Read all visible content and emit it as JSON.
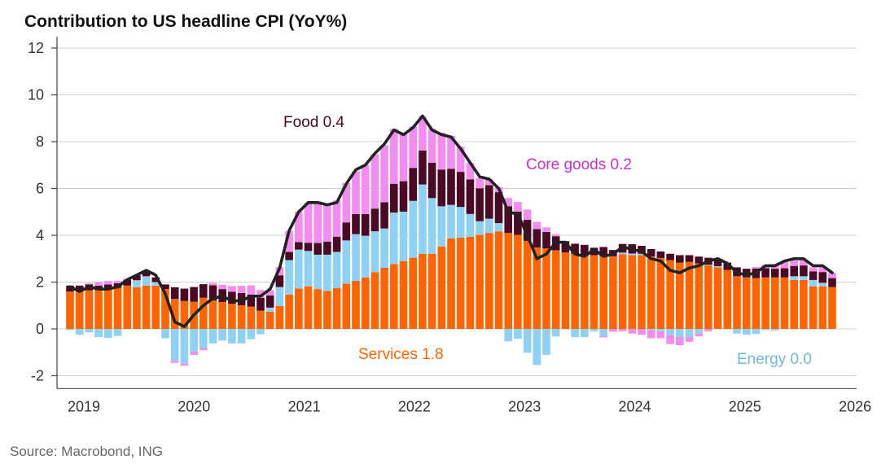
{
  "chart_data": {
    "type": "bar",
    "stacked": true,
    "title": "Contribution to US headline CPI (YoY%)",
    "xlabel": "",
    "ylabel": "",
    "ylim": [
      -2.55,
      12
    ],
    "y_ticks": [
      -2,
      0,
      2,
      4,
      6,
      8,
      10,
      12
    ],
    "x_ticks": [
      "2019",
      "2020",
      "2021",
      "2022",
      "2023",
      "2024",
      "2025",
      "2026"
    ],
    "grid": true,
    "frequency": "monthly",
    "colors": {
      "services": "#ff6400",
      "energy": "#8fd0f5",
      "food": "#4a0a25",
      "core_goods": "#f28cf0",
      "headline": "#222222"
    },
    "series": [
      {
        "name": "Services",
        "key": "services",
        "values": [
          1.6,
          1.6,
          1.65,
          1.65,
          1.7,
          1.75,
          1.85,
          1.78,
          1.85,
          1.85,
          1.7,
          1.28,
          1.19,
          1.16,
          1.33,
          1.21,
          1.15,
          1.07,
          1.01,
          0.95,
          0.78,
          0.74,
          0.98,
          1.47,
          1.73,
          1.82,
          1.7,
          1.62,
          1.74,
          1.94,
          2.05,
          2.2,
          2.43,
          2.61,
          2.77,
          2.9,
          3.04,
          3.21,
          3.21,
          3.52,
          3.87,
          3.9,
          3.94,
          4.02,
          4.1,
          4.17,
          4.1,
          4.02,
          3.76,
          3.48,
          3.44,
          3.36,
          3.27,
          3.21,
          3.15,
          3.15,
          3.1,
          3.1,
          3.19,
          3.15,
          3.15,
          3.1,
          3.03,
          2.94,
          2.83,
          2.86,
          2.8,
          2.71,
          2.63,
          2.52,
          2.25,
          2.2,
          2.17,
          2.2,
          2.2,
          2.2,
          2.09,
          2.09,
          1.82,
          1.82,
          1.79
        ]
      },
      {
        "name": "Energy",
        "key": "energy",
        "values": [
          -0.05,
          -0.25,
          -0.15,
          -0.35,
          -0.38,
          -0.3,
          0.0,
          0.3,
          0.4,
          0.15,
          -0.4,
          -1.37,
          -1.47,
          -0.96,
          -0.81,
          -0.62,
          -0.5,
          -0.62,
          -0.62,
          -0.44,
          -0.23,
          0.17,
          0.81,
          1.47,
          1.66,
          1.51,
          1.47,
          1.55,
          1.55,
          1.84,
          2.0,
          1.78,
          1.74,
          1.68,
          2.2,
          2.11,
          2.43,
          2.96,
          2.38,
          1.72,
          1.43,
          1.31,
          0.97,
          0.58,
          0.61,
          0.35,
          -0.53,
          -0.42,
          -1.02,
          -1.54,
          -1.11,
          -0.32,
          -0.02,
          -0.35,
          -0.35,
          -0.1,
          -0.3,
          0.0,
          0.07,
          0.07,
          0.06,
          -0.05,
          -0.1,
          -0.27,
          -0.35,
          -0.35,
          -0.2,
          0.03,
          0.05,
          0.0,
          -0.2,
          -0.25,
          -0.22,
          -0.05,
          -0.07,
          0.0,
          0.16,
          0.16,
          0.27,
          0.15,
          0.0
        ]
      },
      {
        "name": "Food",
        "key": "food",
        "values": [
          0.25,
          0.25,
          0.25,
          0.2,
          0.2,
          0.2,
          0.25,
          0.2,
          0.2,
          0.2,
          0.2,
          0.5,
          0.53,
          0.63,
          0.58,
          0.65,
          0.55,
          0.52,
          0.52,
          0.52,
          0.55,
          0.52,
          0.5,
          0.35,
          0.32,
          0.35,
          0.5,
          0.56,
          0.65,
          0.77,
          0.86,
          0.93,
          0.97,
          1.12,
          1.23,
          1.3,
          1.41,
          1.45,
          1.51,
          1.57,
          1.54,
          1.5,
          1.48,
          1.41,
          1.43,
          1.32,
          1.14,
          0.99,
          0.9,
          0.78,
          0.7,
          0.6,
          0.48,
          0.43,
          0.44,
          0.32,
          0.4,
          0.27,
          0.37,
          0.4,
          0.34,
          0.31,
          0.28,
          0.27,
          0.32,
          0.29,
          0.29,
          0.3,
          0.3,
          0.31,
          0.38,
          0.37,
          0.41,
          0.39,
          0.37,
          0.39,
          0.44,
          0.46,
          0.37,
          0.46,
          0.38
        ]
      },
      {
        "name": "Core goods",
        "key": "core_goods",
        "values": [
          0.0,
          0.0,
          0.05,
          0.15,
          0.15,
          0.1,
          0.05,
          0.02,
          0.05,
          0.0,
          0.0,
          -0.08,
          -0.1,
          -0.15,
          -0.1,
          0.1,
          0.19,
          0.24,
          0.31,
          0.39,
          0.33,
          0.23,
          0.35,
          0.9,
          1.3,
          1.7,
          1.78,
          1.62,
          1.55,
          1.68,
          1.83,
          2.09,
          2.32,
          2.44,
          2.35,
          2.06,
          1.77,
          1.45,
          1.45,
          1.57,
          1.41,
          1.08,
          0.7,
          0.44,
          0.26,
          0.21,
          0.35,
          0.41,
          0.44,
          0.31,
          0.2,
          0.09,
          0.0,
          0.0,
          0.0,
          0.0,
          -0.06,
          -0.12,
          -0.1,
          -0.2,
          -0.25,
          -0.35,
          -0.3,
          -0.38,
          -0.35,
          -0.2,
          -0.12,
          -0.1,
          0.0,
          0.0,
          0.0,
          0.0,
          0.06,
          0.15,
          0.2,
          0.27,
          0.23,
          0.23,
          0.17,
          0.2,
          0.23
        ]
      },
      {
        "name": "Headline CPI",
        "key": "headline",
        "type": "line",
        "values": [
          1.8,
          1.6,
          1.8,
          1.7,
          1.7,
          1.8,
          2.1,
          2.3,
          2.5,
          2.3,
          1.5,
          0.3,
          0.1,
          0.6,
          1.0,
          1.3,
          1.4,
          1.2,
          1.2,
          1.4,
          1.4,
          1.7,
          2.6,
          4.2,
          5.0,
          5.4,
          5.4,
          5.3,
          5.4,
          6.2,
          6.8,
          7.0,
          7.5,
          7.9,
          8.5,
          8.3,
          8.6,
          9.1,
          8.5,
          8.3,
          8.2,
          7.7,
          7.1,
          6.5,
          6.4,
          6.0,
          5.0,
          4.9,
          4.0,
          3.0,
          3.2,
          3.7,
          3.7,
          3.2,
          3.1,
          3.4,
          3.1,
          3.2,
          3.5,
          3.4,
          3.3,
          3.0,
          2.9,
          2.5,
          2.4,
          2.6,
          2.7,
          2.9,
          3.0,
          2.8,
          2.4,
          2.3,
          2.4,
          2.7,
          2.7,
          2.9,
          3.0,
          3.0,
          2.7,
          2.7,
          2.4
        ]
      }
    ],
    "annotations": {
      "food": "Food 0.4",
      "core_goods": "Core goods 0.2",
      "services": "Services 1.8",
      "energy": "Energy 0.0"
    },
    "source": "Source: Macrobond, ING"
  }
}
